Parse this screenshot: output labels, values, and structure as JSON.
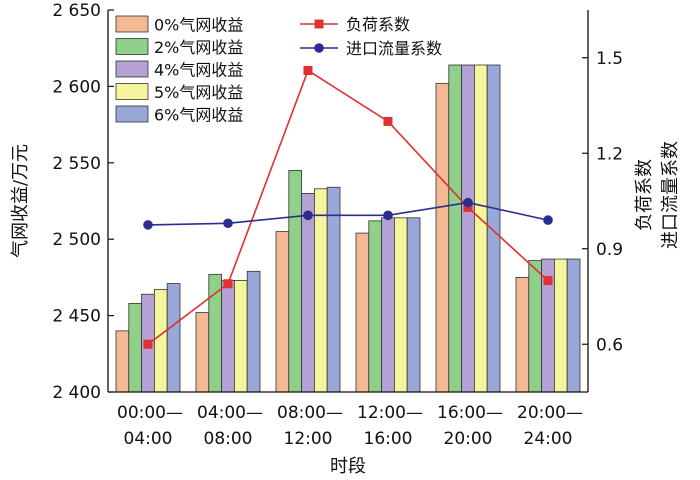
{
  "chart_data": {
    "type": "bar",
    "xlabel": "时段",
    "ylabel": "气网收益/万元",
    "y2label_line1": "负荷系数",
    "y2label_line2": "进口流量系数",
    "categories_line1": [
      "00:00—",
      "04:00—",
      "08:00—",
      "12:00—",
      "16:00—",
      "20:00—"
    ],
    "categories_line2": [
      "04:00",
      "08:00",
      "12:00",
      "16:00",
      "20:00",
      "24:00"
    ],
    "ylim": [
      2400,
      2650
    ],
    "yticks": [
      2400,
      2450,
      2500,
      2550,
      2600,
      2650
    ],
    "ytick_labels": [
      "2 400",
      "2 450",
      "2 500",
      "2 550",
      "2 600",
      "2 650"
    ],
    "y2lim": [
      0.45,
      1.65
    ],
    "y2ticks": [
      0.6,
      0.9,
      1.2,
      1.5
    ],
    "y2tick_labels": [
      "0.6",
      "0.9",
      "1.2",
      "1.5"
    ],
    "bar_series": [
      {
        "name": "0%气网收益",
        "color": "#f5b894",
        "values": [
          2440,
          2452,
          2505,
          2504,
          2602,
          2475
        ]
      },
      {
        "name": "2%气网收益",
        "color": "#8fd18a",
        "values": [
          2458,
          2477,
          2545,
          2512,
          2614,
          2486
        ]
      },
      {
        "name": "4%气网收益",
        "color": "#b5a1d6",
        "values": [
          2464,
          2473,
          2530,
          2514,
          2614,
          2487
        ]
      },
      {
        "name": "5%气网收益",
        "color": "#f4f59c",
        "values": [
          2467,
          2473,
          2533,
          2514,
          2614,
          2487
        ]
      },
      {
        "name": "6%气网收益",
        "color": "#99a8d8",
        "values": [
          2471,
          2479,
          2534,
          2514,
          2614,
          2487
        ]
      }
    ],
    "line_series": [
      {
        "name": "负荷系数",
        "color": "#e03030",
        "marker": "square",
        "values": [
          0.6,
          0.79,
          1.46,
          1.3,
          1.03,
          0.8
        ]
      },
      {
        "name": "进口流量系数",
        "color": "#2a2f8f",
        "marker": "circle",
        "values": [
          0.975,
          0.98,
          1.005,
          1.005,
          1.045,
          0.99
        ]
      }
    ]
  }
}
